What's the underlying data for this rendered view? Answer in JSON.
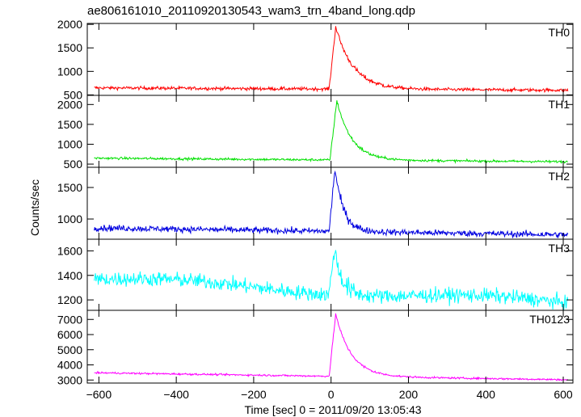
{
  "chart_data": {
    "type": "line",
    "title": "ae806161010_20110920130543_wam3_trn_4band_long.qdp",
    "xlabel": "Time [sec] 0 = 2011/09/20 13:05:43",
    "ylabel": "Counts/sec",
    "xlim": [
      -630,
      625
    ],
    "xticks": [
      -600,
      -400,
      -200,
      0,
      200,
      400,
      600
    ],
    "xtick_labels": [
      "−600",
      "−400",
      "−200",
      "0",
      "200",
      "400",
      "600"
    ],
    "panels": [
      {
        "name": "TH0",
        "color": "#ff0000",
        "ylim": [
          490,
          2020
        ],
        "yticks": [
          500,
          1000,
          1500,
          2000
        ],
        "ytick_labels": [
          "500",
          "1000",
          "1500",
          "2000"
        ],
        "model": {
          "base_start": 650,
          "base_end": 600,
          "peak": 1950,
          "rise_start": -5,
          "peak_time": 12,
          "decay_tau": 45,
          "noise": 35
        },
        "points": [
          {
            "x": -600,
            "y": 660
          },
          {
            "x": -400,
            "y": 640
          },
          {
            "x": -200,
            "y": 620
          },
          {
            "x": -10,
            "y": 610
          },
          {
            "x": 12,
            "y": 1950
          },
          {
            "x": 50,
            "y": 1350
          },
          {
            "x": 100,
            "y": 900
          },
          {
            "x": 200,
            "y": 680
          },
          {
            "x": 400,
            "y": 620
          },
          {
            "x": 600,
            "y": 600
          }
        ]
      },
      {
        "name": "TH1",
        "color": "#00e000",
        "ylim": [
          420,
          2230
        ],
        "yticks": [
          500,
          1000,
          1500,
          2000
        ],
        "ytick_labels": [
          "500",
          "1000",
          "1500",
          "2000"
        ],
        "model": {
          "base_start": 650,
          "base_end": 560,
          "peak": 2100,
          "rise_start": -3,
          "peak_time": 15,
          "decay_tau": 38,
          "noise": 30
        },
        "points": [
          {
            "x": -600,
            "y": 650
          },
          {
            "x": -400,
            "y": 640
          },
          {
            "x": -200,
            "y": 620
          },
          {
            "x": -10,
            "y": 600
          },
          {
            "x": 15,
            "y": 2100
          },
          {
            "x": 50,
            "y": 1400
          },
          {
            "x": 100,
            "y": 850
          },
          {
            "x": 200,
            "y": 620
          },
          {
            "x": 400,
            "y": 580
          },
          {
            "x": 600,
            "y": 560
          }
        ]
      },
      {
        "name": "TH2",
        "color": "#0000e0",
        "ylim": [
          680,
          1820
        ],
        "yticks": [
          1000,
          1500
        ],
        "ytick_labels": [
          "1000",
          "1500"
        ],
        "model": {
          "base_start": 860,
          "base_end": 750,
          "peak": 1800,
          "rise_start": -5,
          "peak_time": 10,
          "decay_tau": 22,
          "noise": 50
        },
        "points": [
          {
            "x": -600,
            "y": 870
          },
          {
            "x": -400,
            "y": 860
          },
          {
            "x": -200,
            "y": 820
          },
          {
            "x": -10,
            "y": 800
          },
          {
            "x": 10,
            "y": 1800
          },
          {
            "x": 30,
            "y": 1200
          },
          {
            "x": 60,
            "y": 900
          },
          {
            "x": 200,
            "y": 780
          },
          {
            "x": 400,
            "y": 770
          },
          {
            "x": 600,
            "y": 750
          }
        ]
      },
      {
        "name": "TH3",
        "color": "#00ffff",
        "ylim": [
          1115,
          1695
        ],
        "yticks": [
          1200,
          1400,
          1600
        ],
        "ytick_labels": [
          "1200",
          "1400",
          "1600"
        ],
        "model": {
          "base_start": 1370,
          "base_end": 1170,
          "peak": 1620,
          "rise_start": -5,
          "peak_time": 8,
          "decay_tau": 20,
          "noise": 60
        },
        "points": [
          {
            "x": -600,
            "y": 1370
          },
          {
            "x": -400,
            "y": 1360
          },
          {
            "x": -200,
            "y": 1330
          },
          {
            "x": -10,
            "y": 1300
          },
          {
            "x": 8,
            "y": 1620
          },
          {
            "x": 50,
            "y": 1320
          },
          {
            "x": 200,
            "y": 1260
          },
          {
            "x": 400,
            "y": 1210
          },
          {
            "x": 600,
            "y": 1170
          }
        ]
      },
      {
        "name": "TH0123",
        "color": "#ff00ff",
        "ylim": [
          2800,
          7600
        ],
        "yticks": [
          3000,
          4000,
          5000,
          6000,
          7000
        ],
        "ytick_labels": [
          "3000",
          "4000",
          "5000",
          "6000",
          "7000"
        ],
        "model": {
          "base_start": 3480,
          "base_end": 3020,
          "peak": 7350,
          "rise_start": -5,
          "peak_time": 12,
          "decay_tau": 40,
          "noise": 60
        },
        "points": [
          {
            "x": -600,
            "y": 3480
          },
          {
            "x": -400,
            "y": 3450
          },
          {
            "x": -200,
            "y": 3380
          },
          {
            "x": -10,
            "y": 3300
          },
          {
            "x": 12,
            "y": 7350
          },
          {
            "x": 50,
            "y": 5200
          },
          {
            "x": 100,
            "y": 3900
          },
          {
            "x": 200,
            "y": 3250
          },
          {
            "x": 400,
            "y": 3100
          },
          {
            "x": 600,
            "y": 3020
          }
        ]
      }
    ]
  }
}
